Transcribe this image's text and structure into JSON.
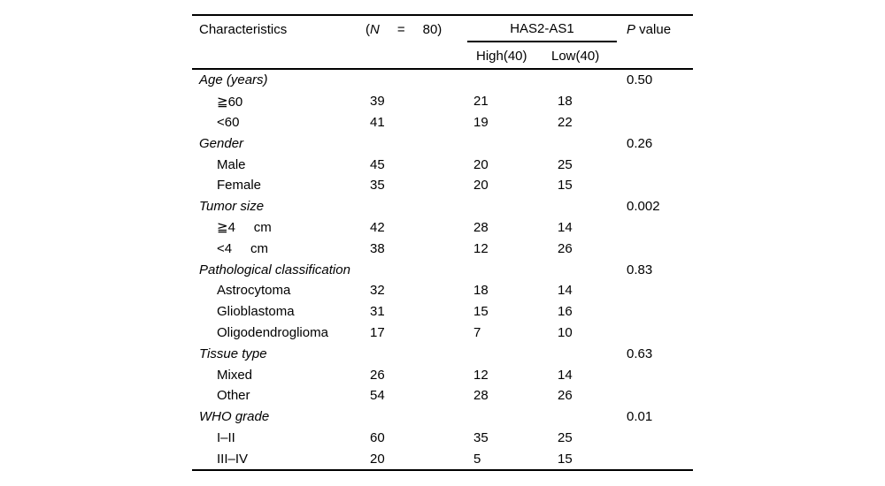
{
  "page": {
    "background_color": "#ffffff",
    "text_color": "#000000"
  },
  "table": {
    "headers": {
      "characteristics": "Characteristics",
      "n": {
        "prefix": "(",
        "symbol": "N",
        "equals": "=",
        "value": "80)"
      },
      "group": "HAS2-AS1",
      "sub_high": "High(40)",
      "sub_low": "Low(40)",
      "p": {
        "symbol": "P",
        "rest": " value"
      }
    },
    "rows": [
      {
        "type": "category",
        "label": "Age (years)",
        "n": "",
        "high": "",
        "low": "",
        "p": "0.50"
      },
      {
        "type": "item",
        "label": "≧60",
        "n": "39",
        "high": "21",
        "low": "18",
        "p": ""
      },
      {
        "type": "item",
        "label": "<60",
        "n": "41",
        "high": "19",
        "low": "22",
        "p": ""
      },
      {
        "type": "category",
        "label": "Gender",
        "n": "",
        "high": "",
        "low": "",
        "p": "0.26"
      },
      {
        "type": "item",
        "label": "Male",
        "n": "45",
        "high": "20",
        "low": "25",
        "p": ""
      },
      {
        "type": "item",
        "label": "Female",
        "n": "35",
        "high": "20",
        "low": "15",
        "p": ""
      },
      {
        "type": "category",
        "label": "Tumor size",
        "n": "",
        "high": "",
        "low": "",
        "p": "0.002"
      },
      {
        "type": "item",
        "label": "≧4     cm",
        "n": "42",
        "high": "28",
        "low": "14",
        "p": ""
      },
      {
        "type": "item",
        "label": "<4     cm",
        "n": "38",
        "high": "12",
        "low": "26",
        "p": ""
      },
      {
        "type": "category",
        "label": "Pathological classification",
        "n": "",
        "high": "",
        "low": "",
        "p": "0.83"
      },
      {
        "type": "item",
        "label": "Astrocytoma",
        "n": "32",
        "high": "18",
        "low": "14",
        "p": ""
      },
      {
        "type": "item",
        "label": "Glioblastoma",
        "n": "31",
        "high": "15",
        "low": "16",
        "p": ""
      },
      {
        "type": "item",
        "label": "Oligodendroglioma",
        "n": "17",
        "high": "7",
        "low": "10",
        "p": ""
      },
      {
        "type": "category",
        "label": "Tissue type",
        "n": "",
        "high": "",
        "low": "",
        "p": "0.63"
      },
      {
        "type": "item",
        "label": "Mixed",
        "n": "26",
        "high": "12",
        "low": "14",
        "p": ""
      },
      {
        "type": "item",
        "label": "Other",
        "n": "54",
        "high": "28",
        "low": "26",
        "p": ""
      },
      {
        "type": "category",
        "label": "WHO grade",
        "n": "",
        "high": "",
        "low": "",
        "p": "0.01"
      },
      {
        "type": "item",
        "label": "I–II",
        "n": "60",
        "high": "35",
        "low": "25",
        "p": ""
      },
      {
        "type": "item",
        "label": "III–IV",
        "n": "20",
        "high": "5",
        "low": "15",
        "p": ""
      }
    ]
  }
}
